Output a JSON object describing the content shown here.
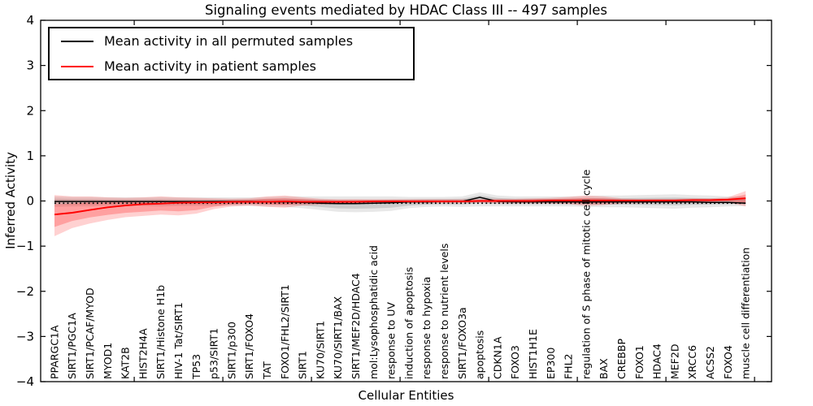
{
  "title": "Signaling events mediated by HDAC Class III -- 497 samples",
  "legend": {
    "entries": [
      {
        "label": "Mean activity in all permuted samples",
        "color": "#000000"
      },
      {
        "label": "Mean activity in patient samples",
        "color": "#ff0000"
      }
    ]
  },
  "chart_data": {
    "type": "line",
    "title": "Signaling events mediated by HDAC Class III -- 497 samples",
    "xlabel": "Cellular Entities",
    "ylabel": "Inferred Activity",
    "ylim": [
      -4,
      4
    ],
    "yticks": [
      4,
      3,
      2,
      1,
      0,
      -1,
      -2,
      -3,
      -4
    ],
    "grid": false,
    "legend_position": "upper left",
    "categories": [
      "PPARGC1A",
      "SIRT1/PGC1A",
      "SIRT1/PCAF/MYOD",
      "MYOD1",
      "KAT2B",
      "HIST2H4A",
      "SIRT1/Histone H1b",
      "HIV-1 Tat/SIRT1",
      "TP53",
      "p53/SIRT1",
      "SIRT1/p300",
      "SIRT1/FOXO4",
      "TAT",
      "FOXO1/FHL2/SIRT1",
      "SIRT1",
      "KU70/SIRT1",
      "KU70/SIRT1/BAX",
      "SIRT1/MEF2D/HDAC4",
      "mol:Lysophosphatidic acid",
      "response to UV",
      "induction of apoptosis",
      "response to hypoxia",
      "response to nutrient levels",
      "SIRT1/FOXO3a",
      "apoptosis",
      "CDKN1A",
      "FOXO3",
      "HIST1H1E",
      "EP300",
      "FHL2",
      "regulation of S phase of mitotic cell cycle",
      "BAX",
      "CREBBP",
      "FOXO1",
      "HDAC4",
      "MEF2D",
      "XRCC6",
      "ACSS2",
      "FOXO4",
      "muscle cell differentiation"
    ],
    "series": [
      {
        "name": "Mean activity in all permuted samples",
        "color": "#000000",
        "values": [
          -0.01,
          -0.01,
          -0.01,
          -0.01,
          -0.01,
          -0.01,
          -0.01,
          -0.01,
          -0.01,
          -0.01,
          -0.01,
          -0.01,
          -0.02,
          -0.02,
          -0.03,
          -0.05,
          -0.06,
          -0.06,
          -0.05,
          -0.04,
          -0.02,
          -0.02,
          -0.01,
          -0.01,
          0.08,
          -0.01,
          -0.02,
          -0.02,
          -0.02,
          -0.02,
          -0.02,
          -0.02,
          -0.02,
          -0.02,
          -0.02,
          -0.02,
          -0.02,
          -0.03,
          -0.03,
          -0.05
        ]
      },
      {
        "name": "Mean activity in patient samples",
        "color": "#ff0000",
        "values": [
          -0.3,
          -0.26,
          -0.2,
          -0.14,
          -0.1,
          -0.07,
          -0.06,
          -0.04,
          -0.03,
          -0.03,
          -0.02,
          -0.02,
          -0.02,
          -0.01,
          -0.02,
          -0.02,
          -0.02,
          -0.02,
          -0.01,
          -0.01,
          -0.01,
          -0.01,
          -0.01,
          -0.01,
          0.0,
          0.0,
          0.0,
          0.0,
          0.01,
          0.01,
          0.01,
          0.01,
          0.01,
          0.01,
          0.01,
          0.01,
          0.02,
          0.02,
          0.03,
          0.06
        ]
      }
    ],
    "reference_dotted_line_y": -0.05,
    "bands": [
      {
        "name": "permuted-samples-band",
        "color": "#000000",
        "alpha": 0.09,
        "upper": [
          0.1,
          0.09,
          0.09,
          0.08,
          0.08,
          0.08,
          0.09,
          0.08,
          0.08,
          0.08,
          0.08,
          0.08,
          0.09,
          0.1,
          0.1,
          0.1,
          0.1,
          0.1,
          0.1,
          0.1,
          0.09,
          0.09,
          0.09,
          0.1,
          0.19,
          0.12,
          0.1,
          0.1,
          0.1,
          0.1,
          0.11,
          0.12,
          0.12,
          0.13,
          0.14,
          0.15,
          0.13,
          0.12,
          0.1,
          0.09
        ],
        "lower": [
          -0.13,
          -0.12,
          -0.12,
          -0.11,
          -0.11,
          -0.11,
          -0.12,
          -0.11,
          -0.11,
          -0.11,
          -0.11,
          -0.11,
          -0.12,
          -0.13,
          -0.16,
          -0.2,
          -0.24,
          -0.25,
          -0.24,
          -0.22,
          -0.16,
          -0.13,
          -0.12,
          -0.13,
          -0.12,
          -0.12,
          -0.12,
          -0.12,
          -0.12,
          -0.12,
          -0.13,
          -0.14,
          -0.14,
          -0.15,
          -0.16,
          -0.17,
          -0.15,
          -0.14,
          -0.12,
          -0.11
        ]
      },
      {
        "name": "patient-samples-band",
        "color": "#ff0000",
        "alpha": 0.18,
        "upper": [
          0.13,
          0.1,
          0.1,
          0.08,
          0.07,
          0.08,
          0.1,
          0.08,
          0.07,
          0.06,
          0.05,
          0.06,
          0.1,
          0.12,
          0.08,
          0.05,
          0.04,
          0.04,
          0.04,
          0.04,
          0.04,
          0.04,
          0.04,
          0.04,
          0.04,
          0.05,
          0.05,
          0.06,
          0.07,
          0.09,
          0.12,
          0.1,
          0.06,
          0.05,
          0.05,
          0.05,
          0.06,
          0.06,
          0.08,
          0.22
        ],
        "lower": [
          -0.78,
          -0.6,
          -0.5,
          -0.42,
          -0.36,
          -0.33,
          -0.3,
          -0.32,
          -0.28,
          -0.18,
          -0.12,
          -0.1,
          -0.13,
          -0.15,
          -0.1,
          -0.08,
          -0.07,
          -0.06,
          -0.06,
          -0.05,
          -0.05,
          -0.05,
          -0.05,
          -0.05,
          -0.04,
          -0.05,
          -0.05,
          -0.05,
          -0.06,
          -0.07,
          -0.11,
          -0.09,
          -0.06,
          -0.05,
          -0.04,
          -0.04,
          -0.04,
          -0.04,
          -0.03,
          -0.12
        ]
      }
    ]
  }
}
